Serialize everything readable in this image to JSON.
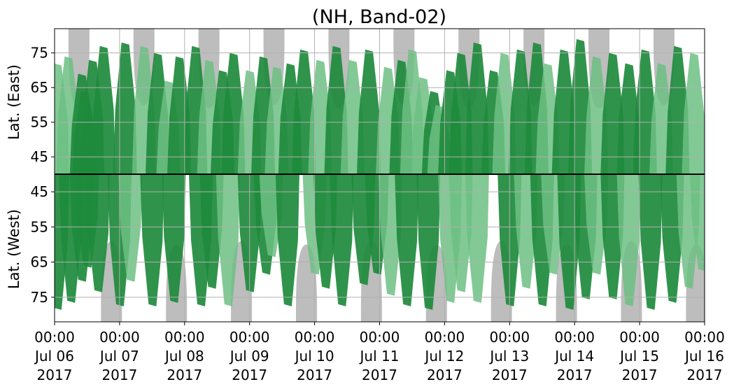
{
  "chart_data": {
    "type": "heatmap",
    "title": "(NH, Band-02)",
    "ylabel_top": "Lat. (East)",
    "ylabel_bottom": "Lat. (West)",
    "x_ticks": [
      {
        "time": "00:00",
        "date": "Jul 06",
        "year": "2017"
      },
      {
        "time": "00:00",
        "date": "Jul 07",
        "year": "2017"
      },
      {
        "time": "00:00",
        "date": "Jul 08",
        "year": "2017"
      },
      {
        "time": "00:00",
        "date": "Jul 09",
        "year": "2017"
      },
      {
        "time": "00:00",
        "date": "Jul 10",
        "year": "2017"
      },
      {
        "time": "00:00",
        "date": "Jul 11",
        "year": "2017"
      },
      {
        "time": "00:00",
        "date": "Jul 12",
        "year": "2017"
      },
      {
        "time": "00:00",
        "date": "Jul 13",
        "year": "2017"
      },
      {
        "time": "00:00",
        "date": "Jul 14",
        "year": "2017"
      },
      {
        "time": "00:00",
        "date": "Jul 15",
        "year": "2017"
      },
      {
        "time": "00:00",
        "date": "Jul 16",
        "year": "2017"
      }
    ],
    "xlim": [
      "2017-07-06 00:00",
      "2017-07-16 00:00"
    ],
    "y_ticks_top": [
      {
        "label": "45",
        "lat": 45
      },
      {
        "label": "55",
        "lat": 55
      },
      {
        "label": "65",
        "lat": 65
      },
      {
        "label": "75",
        "lat": 75
      }
    ],
    "y_ticks_bottom": [
      {
        "label": "75",
        "lat": 75
      },
      {
        "label": "65",
        "lat": 65
      },
      {
        "label": "55",
        "lat": 55
      },
      {
        "label": "45",
        "lat": 45
      }
    ],
    "ylim_each_panel": [
      40,
      82
    ],
    "grid": true,
    "colors": {
      "night_gray": "#bdbdbd",
      "activity_dark": "#1e8a3c",
      "activity_light": "#6cc082",
      "divider": "#000000",
      "grid": "#b0b0b0"
    },
    "night_regions_east": [
      {
        "center": "2017-07-06 09:00",
        "reach_lat": 59
      },
      {
        "center": "2017-07-07 09:00",
        "reach_lat": 60
      },
      {
        "center": "2017-07-08 09:00",
        "reach_lat": 59
      },
      {
        "center": "2017-07-09 09:00",
        "reach_lat": 60
      },
      {
        "center": "2017-07-10 09:00",
        "reach_lat": 59
      },
      {
        "center": "2017-07-11 09:00",
        "reach_lat": 60
      },
      {
        "center": "2017-07-12 09:00",
        "reach_lat": 59
      },
      {
        "center": "2017-07-13 09:00",
        "reach_lat": 60
      },
      {
        "center": "2017-07-14 09:00",
        "reach_lat": 59
      },
      {
        "center": "2017-07-15 09:00",
        "reach_lat": 60
      }
    ],
    "night_regions_west": [
      {
        "center": "2017-07-06 21:00",
        "reach_lat": 59
      },
      {
        "center": "2017-07-07 21:00",
        "reach_lat": 60
      },
      {
        "center": "2017-07-08 21:00",
        "reach_lat": 59
      },
      {
        "center": "2017-07-09 21:00",
        "reach_lat": 60
      },
      {
        "center": "2017-07-10 21:00",
        "reach_lat": 59
      },
      {
        "center": "2017-07-11 21:00",
        "reach_lat": 60
      },
      {
        "center": "2017-07-12 21:00",
        "reach_lat": 59
      },
      {
        "center": "2017-07-13 21:00",
        "reach_lat": 60
      },
      {
        "center": "2017-07-14 21:00",
        "reach_lat": 59
      },
      {
        "center": "2017-07-15 21:00",
        "reach_lat": 60
      }
    ],
    "activity_east": [
      {
        "t": "2017-07-06 01:00",
        "lat": 72,
        "level": "light"
      },
      {
        "t": "2017-07-06 05:00",
        "lat": 74,
        "level": "light"
      },
      {
        "t": "2017-07-06 10:00",
        "lat": 69,
        "level": "dark"
      },
      {
        "t": "2017-07-06 11:00",
        "lat": 64,
        "level": "dark"
      },
      {
        "t": "2017-07-06 14:00",
        "lat": 73,
        "level": "dark"
      },
      {
        "t": "2017-07-06 18:00",
        "lat": 77,
        "level": "dark"
      },
      {
        "t": "2017-07-07 02:00",
        "lat": 78,
        "level": "dark"
      },
      {
        "t": "2017-07-07 09:00",
        "lat": 77,
        "level": "light"
      },
      {
        "t": "2017-07-07 14:00",
        "lat": 75,
        "level": "dark"
      },
      {
        "t": "2017-07-07 18:00",
        "lat": 67,
        "level": "light"
      },
      {
        "t": "2017-07-07 22:00",
        "lat": 74,
        "level": "dark"
      },
      {
        "t": "2017-07-08 04:00",
        "lat": 77,
        "level": "dark"
      },
      {
        "t": "2017-07-08 09:00",
        "lat": 73,
        "level": "light"
      },
      {
        "t": "2017-07-08 14:00",
        "lat": 70,
        "level": "dark"
      },
      {
        "t": "2017-07-08 18:00",
        "lat": 75,
        "level": "dark"
      },
      {
        "t": "2017-07-09 00:00",
        "lat": 70,
        "level": "light"
      },
      {
        "t": "2017-07-09 05:00",
        "lat": 74,
        "level": "dark"
      },
      {
        "t": "2017-07-09 10:00",
        "lat": 71,
        "level": "light"
      },
      {
        "t": "2017-07-09 15:00",
        "lat": 72,
        "level": "dark"
      },
      {
        "t": "2017-07-09 20:00",
        "lat": 76,
        "level": "dark"
      },
      {
        "t": "2017-07-10 02:00",
        "lat": 73,
        "level": "light"
      },
      {
        "t": "2017-07-10 08:00",
        "lat": 77,
        "level": "dark"
      },
      {
        "t": "2017-07-10 14:00",
        "lat": 73,
        "level": "light"
      },
      {
        "t": "2017-07-10 20:00",
        "lat": 76,
        "level": "dark"
      },
      {
        "t": "2017-07-11 03:00",
        "lat": 71,
        "level": "light"
      },
      {
        "t": "2017-07-11 08:00",
        "lat": 73,
        "level": "dark"
      },
      {
        "t": "2017-07-11 12:00",
        "lat": 76,
        "level": "light"
      },
      {
        "t": "2017-07-11 16:00",
        "lat": 68,
        "level": "light"
      },
      {
        "t": "2017-07-11 20:00",
        "lat": 64,
        "level": "dark"
      },
      {
        "t": "2017-07-11 22:00",
        "lat": 60,
        "level": "light"
      },
      {
        "t": "2017-07-12 02:00",
        "lat": 70,
        "level": "dark"
      },
      {
        "t": "2017-07-12 06:00",
        "lat": 75,
        "level": "dark"
      },
      {
        "t": "2017-07-12 12:00",
        "lat": 78,
        "level": "dark"
      },
      {
        "t": "2017-07-12 18:00",
        "lat": 70,
        "level": "dark"
      },
      {
        "t": "2017-07-12 22:00",
        "lat": 75,
        "level": "light"
      },
      {
        "t": "2017-07-13 04:00",
        "lat": 76,
        "level": "dark"
      },
      {
        "t": "2017-07-13 10:00",
        "lat": 78,
        "level": "dark"
      },
      {
        "t": "2017-07-13 14:00",
        "lat": 72,
        "level": "light"
      },
      {
        "t": "2017-07-13 20:00",
        "lat": 76,
        "level": "dark"
      },
      {
        "t": "2017-07-14 02:00",
        "lat": 79,
        "level": "dark"
      },
      {
        "t": "2017-07-14 08:00",
        "lat": 74,
        "level": "light"
      },
      {
        "t": "2017-07-14 14:00",
        "lat": 75,
        "level": "dark"
      },
      {
        "t": "2017-07-14 20:00",
        "lat": 72,
        "level": "dark"
      },
      {
        "t": "2017-07-15 02:00",
        "lat": 76,
        "level": "dark"
      },
      {
        "t": "2017-07-15 08:00",
        "lat": 72,
        "level": "light"
      },
      {
        "t": "2017-07-15 14:00",
        "lat": 77,
        "level": "dark"
      },
      {
        "t": "2017-07-15 20:00",
        "lat": 75,
        "level": "light"
      }
    ],
    "activity_west": [
      {
        "t": "2017-07-06 01:00",
        "lat": 78,
        "level": "dark"
      },
      {
        "t": "2017-07-06 06:00",
        "lat": 76,
        "level": "dark"
      },
      {
        "t": "2017-07-06 10:00",
        "lat": 70,
        "level": "dark"
      },
      {
        "t": "2017-07-06 12:00",
        "lat": 66,
        "level": "dark"
      },
      {
        "t": "2017-07-06 16:00",
        "lat": 73,
        "level": "dark"
      },
      {
        "t": "2017-07-07 00:00",
        "lat": 77,
        "level": "dark"
      },
      {
        "t": "2017-07-07 04:00",
        "lat": 70,
        "level": "light"
      },
      {
        "t": "2017-07-07 12:00",
        "lat": 77,
        "level": "dark"
      },
      {
        "t": "2017-07-07 20:00",
        "lat": 76,
        "level": "dark"
      },
      {
        "t": "2017-07-08 06:00",
        "lat": 77,
        "level": "dark"
      },
      {
        "t": "2017-07-08 10:00",
        "lat": 72,
        "level": "dark"
      },
      {
        "t": "2017-07-08 16:00",
        "lat": 77,
        "level": "light"
      },
      {
        "t": "2017-07-09 00:00",
        "lat": 73,
        "level": "dark"
      },
      {
        "t": "2017-07-09 06:00",
        "lat": 68,
        "level": "dark"
      },
      {
        "t": "2017-07-09 08:00",
        "lat": 63,
        "level": "light"
      },
      {
        "t": "2017-07-09 14:00",
        "lat": 77,
        "level": "dark"
      },
      {
        "t": "2017-07-10 00:00",
        "lat": 68,
        "level": "light"
      },
      {
        "t": "2017-07-10 04:00",
        "lat": 72,
        "level": "dark"
      },
      {
        "t": "2017-07-10 10:00",
        "lat": 77,
        "level": "dark"
      },
      {
        "t": "2017-07-10 18:00",
        "lat": 71,
        "level": "dark"
      },
      {
        "t": "2017-07-10 23:00",
        "lat": 68,
        "level": "dark"
      },
      {
        "t": "2017-07-11 04:00",
        "lat": 74,
        "level": "light"
      },
      {
        "t": "2017-07-11 10:00",
        "lat": 77,
        "level": "dark"
      },
      {
        "t": "2017-07-11 18:00",
        "lat": 78,
        "level": "dark"
      },
      {
        "t": "2017-07-12 02:00",
        "lat": 76,
        "level": "light"
      },
      {
        "t": "2017-07-12 06:00",
        "lat": 73,
        "level": "light"
      },
      {
        "t": "2017-07-12 12:00",
        "lat": 76,
        "level": "light"
      },
      {
        "t": "2017-07-13 00:00",
        "lat": 77,
        "level": "dark"
      },
      {
        "t": "2017-07-13 06:00",
        "lat": 72,
        "level": "light"
      },
      {
        "t": "2017-07-13 12:00",
        "lat": 77,
        "level": "dark"
      },
      {
        "t": "2017-07-13 16:00",
        "lat": 68,
        "level": "light"
      },
      {
        "t": "2017-07-13 22:00",
        "lat": 78,
        "level": "dark"
      },
      {
        "t": "2017-07-14 04:00",
        "lat": 75,
        "level": "dark"
      },
      {
        "t": "2017-07-14 08:00",
        "lat": 68,
        "level": "light"
      },
      {
        "t": "2017-07-14 14:00",
        "lat": 75,
        "level": "dark"
      },
      {
        "t": "2017-07-14 20:00",
        "lat": 77,
        "level": "light"
      },
      {
        "t": "2017-07-15 04:00",
        "lat": 78,
        "level": "dark"
      },
      {
        "t": "2017-07-15 12:00",
        "lat": 76,
        "level": "dark"
      },
      {
        "t": "2017-07-15 18:00",
        "lat": 72,
        "level": "light"
      },
      {
        "t": "2017-07-15 23:00",
        "lat": 67,
        "level": "light"
      }
    ]
  }
}
